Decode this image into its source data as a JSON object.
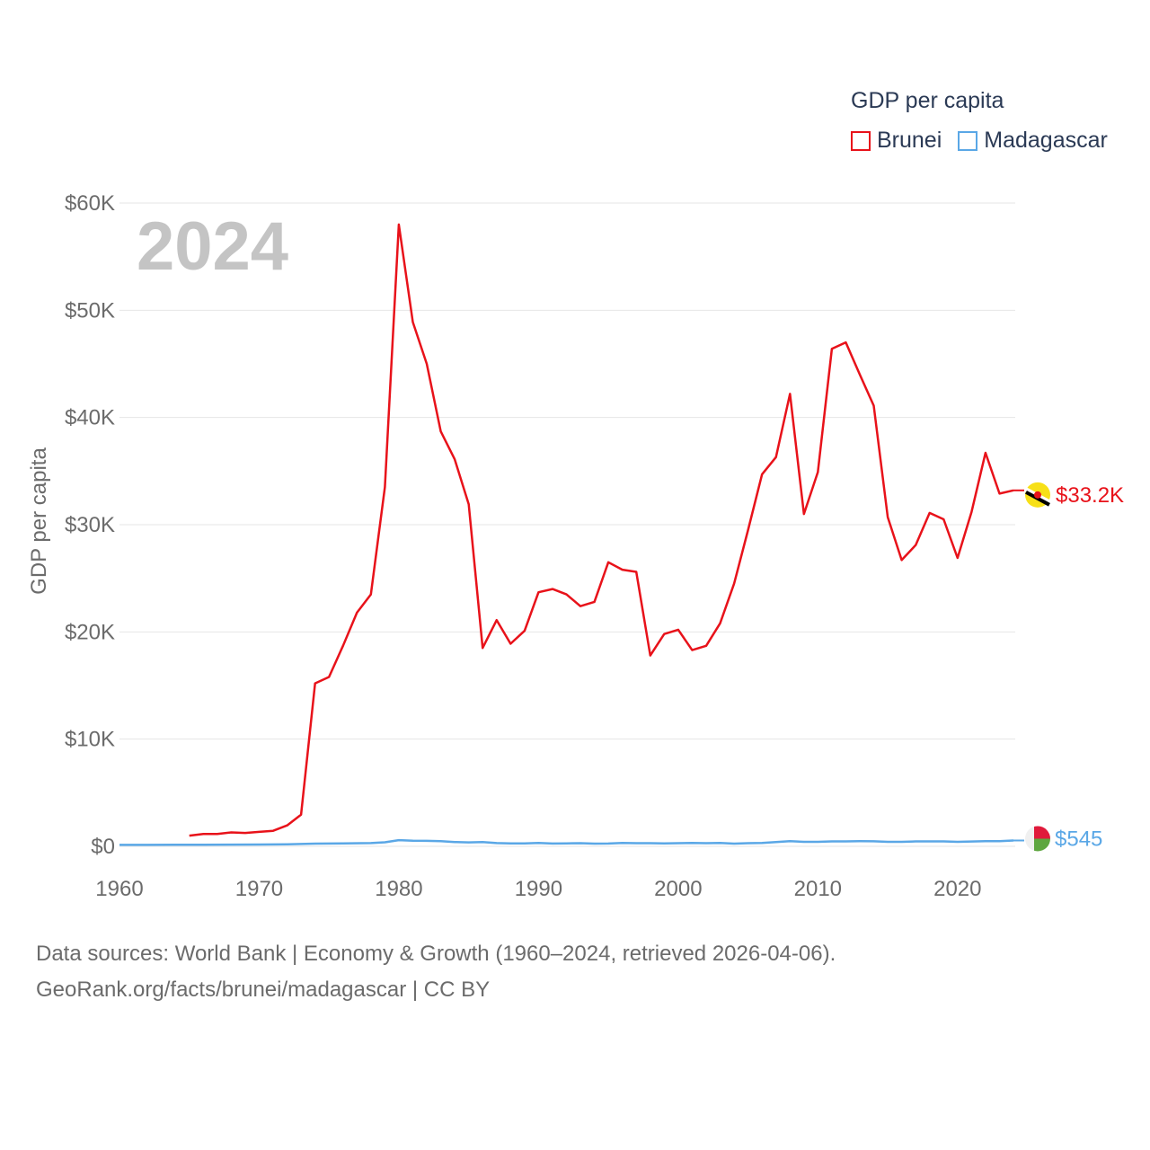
{
  "legend": {
    "title": "GDP per capita",
    "items": [
      {
        "name": "Brunei",
        "color": "#e8121a"
      },
      {
        "name": "Madagascar",
        "color": "#5aa7e6"
      }
    ]
  },
  "year_label": "2024",
  "source": {
    "line1": "Data sources: World Bank | Economy & Growth (1960–2024, retrieved 2026-04-06).",
    "line2": "GeoRank.org/facts/brunei/madagascar | CC BY"
  },
  "end_labels": {
    "brunei": "$33.2K",
    "madagascar": "$545"
  },
  "chart_data": {
    "type": "line",
    "title": "",
    "xlabel": "",
    "ylabel": "GDP per capita",
    "xlim": [
      1960,
      2025
    ],
    "ylim": [
      0,
      60000
    ],
    "x_ticks": [
      1960,
      1970,
      1980,
      1990,
      2000,
      2010,
      2020
    ],
    "y_ticks": [
      0,
      10000,
      20000,
      30000,
      40000,
      50000,
      60000
    ],
    "y_tick_labels": [
      "$0",
      "$10K",
      "$20K",
      "$30K",
      "$40K",
      "$50K",
      "$60K"
    ],
    "grid": true,
    "series": [
      {
        "name": "Brunei",
        "color": "#e8121a",
        "x": [
          1965,
          1966,
          1967,
          1968,
          1969,
          1970,
          1971,
          1972,
          1973,
          1974,
          1975,
          1976,
          1977,
          1978,
          1979,
          1980,
          1981,
          1982,
          1983,
          1984,
          1985,
          1986,
          1987,
          1988,
          1989,
          1990,
          1991,
          1992,
          1993,
          1994,
          1995,
          1996,
          1997,
          1998,
          1999,
          2000,
          2001,
          2002,
          2003,
          2004,
          2005,
          2006,
          2007,
          2008,
          2009,
          2010,
          2011,
          2012,
          2013,
          2014,
          2015,
          2016,
          2017,
          2018,
          2019,
          2020,
          2021,
          2022,
          2023,
          2024
        ],
        "values": [
          1000,
          1150,
          1150,
          1300,
          1250,
          1350,
          1450,
          1950,
          2950,
          15200,
          15800,
          18700,
          21800,
          23500,
          33500,
          58000,
          48900,
          45000,
          38700,
          36100,
          31900,
          18500,
          21100,
          18900,
          20100,
          23700,
          24000,
          23500,
          22400,
          22800,
          26500,
          25800,
          25600,
          17800,
          19800,
          20200,
          18300,
          18700,
          20800,
          24500,
          29500,
          34700,
          36300,
          42200,
          31000,
          34900,
          46400,
          47000,
          44000,
          41100,
          30700,
          26700,
          28100,
          31100,
          30500,
          26900,
          31200,
          36700,
          32900,
          33200
        ]
      },
      {
        "name": "Madagascar",
        "color": "#5aa7e6",
        "x": [
          1960,
          1962,
          1964,
          1966,
          1968,
          1970,
          1972,
          1974,
          1976,
          1978,
          1979,
          1980,
          1981,
          1982,
          1983,
          1984,
          1985,
          1986,
          1987,
          1988,
          1989,
          1990,
          1991,
          1992,
          1993,
          1994,
          1995,
          1996,
          1997,
          1998,
          1999,
          2000,
          2001,
          2002,
          2003,
          2004,
          2005,
          2006,
          2007,
          2008,
          2009,
          2010,
          2011,
          2012,
          2013,
          2014,
          2015,
          2016,
          2017,
          2018,
          2019,
          2020,
          2021,
          2022,
          2023,
          2024
        ],
        "values": [
          130,
          135,
          140,
          150,
          160,
          170,
          190,
          250,
          270,
          300,
          380,
          580,
          520,
          510,
          480,
          400,
          370,
          400,
          300,
          280,
          270,
          320,
          260,
          280,
          290,
          250,
          260,
          320,
          290,
          290,
          270,
          290,
          310,
          290,
          320,
          250,
          290,
          310,
          400,
          480,
          420,
          420,
          460,
          460,
          480,
          470,
          420,
          420,
          460,
          460,
          460,
          420,
          450,
          480,
          490,
          545
        ]
      }
    ]
  }
}
